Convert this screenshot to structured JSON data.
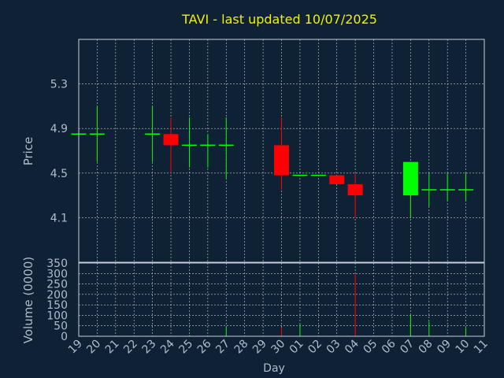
{
  "chart_data": {
    "type": "candlestick",
    "title": "TAVI - last updated 10/07/2025",
    "xlabel": "Day",
    "price_panel": {
      "ylabel": "Price",
      "yticks": [
        "4.1",
        "4.5",
        "4.9",
        "5.3"
      ],
      "ylim": [
        3.7,
        5.7
      ]
    },
    "volume_panel": {
      "ylabel": "Volume (0000)",
      "yticks": [
        "0",
        "50",
        "100",
        "150",
        "200",
        "250",
        "300",
        "350"
      ],
      "ylim": [
        0,
        350
      ]
    },
    "xticks": [
      "19",
      "20",
      "21",
      "22",
      "23",
      "24",
      "25",
      "26",
      "27",
      "28",
      "29",
      "30",
      "01",
      "02",
      "03",
      "04",
      "05",
      "06",
      "07",
      "08",
      "09",
      "10",
      "11"
    ],
    "candles": [
      {
        "i": 0,
        "open": 4.85,
        "high": 4.85,
        "low": 4.85,
        "close": 4.85,
        "volume": 2
      },
      {
        "i": 1,
        "open": 4.85,
        "high": 5.1,
        "low": 4.6,
        "close": 4.85,
        "volume": 3
      },
      {
        "i": 4,
        "open": 4.85,
        "high": 5.1,
        "low": 4.6,
        "close": 4.85,
        "volume": 3
      },
      {
        "i": 5,
        "open": 4.85,
        "high": 5.0,
        "low": 4.5,
        "close": 4.75,
        "volume": 3
      },
      {
        "i": 6,
        "open": 4.75,
        "high": 5.0,
        "low": 4.55,
        "close": 4.75,
        "volume": 5
      },
      {
        "i": 7,
        "open": 4.75,
        "high": 4.85,
        "low": 4.55,
        "close": 4.75,
        "volume": 3
      },
      {
        "i": 8,
        "open": 4.75,
        "high": 5.0,
        "low": 4.45,
        "close": 4.75,
        "volume": 45
      },
      {
        "i": 11,
        "open": 4.75,
        "high": 5.0,
        "low": 4.35,
        "close": 4.48,
        "volume": 40
      },
      {
        "i": 12,
        "open": 4.48,
        "high": 4.48,
        "low": 4.48,
        "close": 4.48,
        "volume": 60
      },
      {
        "i": 13,
        "open": 4.48,
        "high": 4.48,
        "low": 4.48,
        "close": 4.48,
        "volume": 3
      },
      {
        "i": 14,
        "open": 4.48,
        "high": 4.48,
        "low": 4.4,
        "close": 4.4,
        "volume": 3
      },
      {
        "i": 15,
        "open": 4.4,
        "high": 4.5,
        "low": 4.1,
        "close": 4.3,
        "volume": 300
      },
      {
        "i": 18,
        "open": 4.3,
        "high": 4.6,
        "low": 4.1,
        "close": 4.6,
        "volume": 100
      },
      {
        "i": 19,
        "open": 4.35,
        "high": 4.5,
        "low": 4.2,
        "close": 4.35,
        "volume": 70
      },
      {
        "i": 20,
        "open": 4.35,
        "high": 4.5,
        "low": 4.25,
        "close": 4.35,
        "volume": 3
      },
      {
        "i": 21,
        "open": 4.35,
        "high": 4.5,
        "low": 4.25,
        "close": 4.35,
        "volume": 40
      }
    ],
    "colors": {
      "up": "#00ff00",
      "down": "#ff0000",
      "background": "#0f2135",
      "title": "#f2f200",
      "text": "#b0bcd0",
      "grid": "#c8d0dc"
    },
    "grid": true
  }
}
